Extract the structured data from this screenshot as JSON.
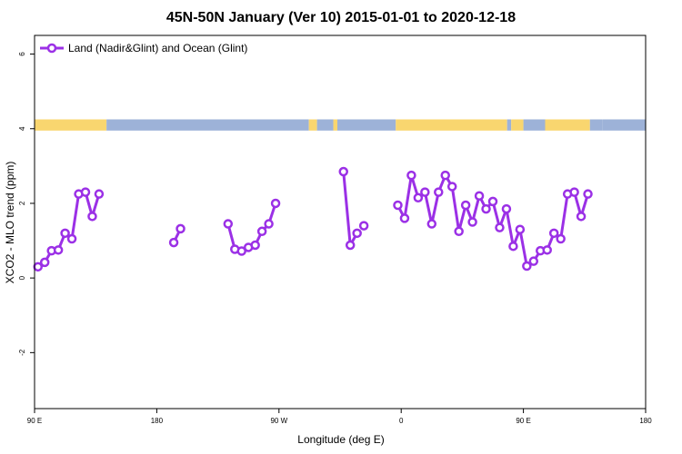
{
  "chart_data": {
    "type": "line",
    "title": "45N-50N January (Ver 10)   2015-01-01 to 2020-12-18",
    "xlabel": "Longitude (deg E)",
    "ylabel": "XCO2 - MLO trend (ppm)",
    "xlim": [
      90,
      540
    ],
    "ylim": [
      -3.5,
      6.5
    ],
    "x_ticks": [
      {
        "value": 90,
        "label": "90 E"
      },
      {
        "value": 180,
        "label": "180"
      },
      {
        "value": 270,
        "label": "90 W"
      },
      {
        "value": 360,
        "label": "0"
      },
      {
        "value": 450,
        "label": "90 E"
      },
      {
        "value": 540,
        "label": "180"
      }
    ],
    "y_ticks": [
      {
        "value": -2,
        "label": "-2"
      },
      {
        "value": 0,
        "label": "0"
      },
      {
        "value": 2,
        "label": "2"
      },
      {
        "value": 4,
        "label": "4"
      },
      {
        "value": 6,
        "label": "6"
      }
    ],
    "grid": false,
    "legend_position": "top-left",
    "colors": {
      "series": "#9b30e6",
      "land": "#f9d66f",
      "ocean": "#9db2d8"
    },
    "land_ocean_band": {
      "y_range": [
        3.95,
        4.25
      ],
      "segments": [
        {
          "x_start": 90,
          "x_end": 143,
          "type": "land"
        },
        {
          "x_start": 143,
          "x_end": 292,
          "type": "ocean"
        },
        {
          "x_start": 292,
          "x_end": 298,
          "type": "land"
        },
        {
          "x_start": 298,
          "x_end": 310,
          "type": "ocean"
        },
        {
          "x_start": 310,
          "x_end": 313,
          "type": "land"
        },
        {
          "x_start": 313,
          "x_end": 356,
          "type": "ocean"
        },
        {
          "x_start": 356,
          "x_end": 438,
          "type": "land"
        },
        {
          "x_start": 438,
          "x_end": 441,
          "type": "ocean"
        },
        {
          "x_start": 441,
          "x_end": 450,
          "type": "land"
        },
        {
          "x_start": 450,
          "x_end": 466,
          "type": "ocean"
        },
        {
          "x_start": 466,
          "x_end": 499,
          "type": "land"
        },
        {
          "x_start": 499,
          "x_end": 508,
          "type": "ocean"
        },
        {
          "x_start": 508,
          "x_end": 540,
          "type": "ocean"
        }
      ]
    },
    "series": [
      {
        "name": "Land (Nadir&Glint) and Ocean (Glint)",
        "segments": [
          [
            [
              92.5,
              0.3
            ],
            [
              97.5,
              0.42
            ],
            [
              102.5,
              0.73
            ],
            [
              107.5,
              0.75
            ],
            [
              112.5,
              1.2
            ],
            [
              117.5,
              1.05
            ],
            [
              122.5,
              2.25
            ],
            [
              127.5,
              2.3
            ],
            [
              132.5,
              1.65
            ],
            [
              137.5,
              2.25
            ]
          ],
          [
            [
              192.5,
              0.95
            ],
            [
              197.5,
              1.32
            ]
          ],
          [
            [
              232.5,
              1.45
            ],
            [
              237.5,
              0.77
            ],
            [
              242.5,
              0.72
            ],
            [
              247.5,
              0.82
            ],
            [
              252.5,
              0.88
            ],
            [
              257.5,
              1.25
            ],
            [
              262.5,
              1.45
            ],
            [
              267.5,
              2.0
            ]
          ],
          [
            [
              317.5,
              2.85
            ],
            [
              322.5,
              0.88
            ],
            [
              327.5,
              1.2
            ]
          ],
          [
            [
              332.5,
              1.4
            ]
          ],
          [
            [
              357.5,
              1.95
            ],
            [
              362.5,
              1.6
            ],
            [
              367.5,
              2.75
            ],
            [
              372.5,
              2.15
            ],
            [
              377.5,
              2.3
            ],
            [
              382.5,
              1.45
            ],
            [
              387.5,
              2.3
            ],
            [
              392.5,
              2.75
            ],
            [
              397.5,
              2.45
            ],
            [
              402.5,
              1.25
            ],
            [
              407.5,
              1.95
            ],
            [
              412.5,
              1.5
            ],
            [
              417.5,
              2.2
            ],
            [
              422.5,
              1.85
            ],
            [
              427.5,
              2.05
            ],
            [
              432.5,
              1.35
            ],
            [
              437.5,
              1.85
            ],
            [
              442.5,
              0.85
            ],
            [
              447.5,
              1.3
            ],
            [
              452.5,
              0.32
            ],
            [
              457.5,
              0.45
            ],
            [
              462.5,
              0.73
            ],
            [
              467.5,
              0.75
            ],
            [
              472.5,
              1.2
            ],
            [
              477.5,
              1.05
            ],
            [
              482.5,
              2.25
            ],
            [
              487.5,
              2.3
            ],
            [
              492.5,
              1.65
            ],
            [
              497.5,
              2.25
            ]
          ]
        ]
      }
    ]
  }
}
